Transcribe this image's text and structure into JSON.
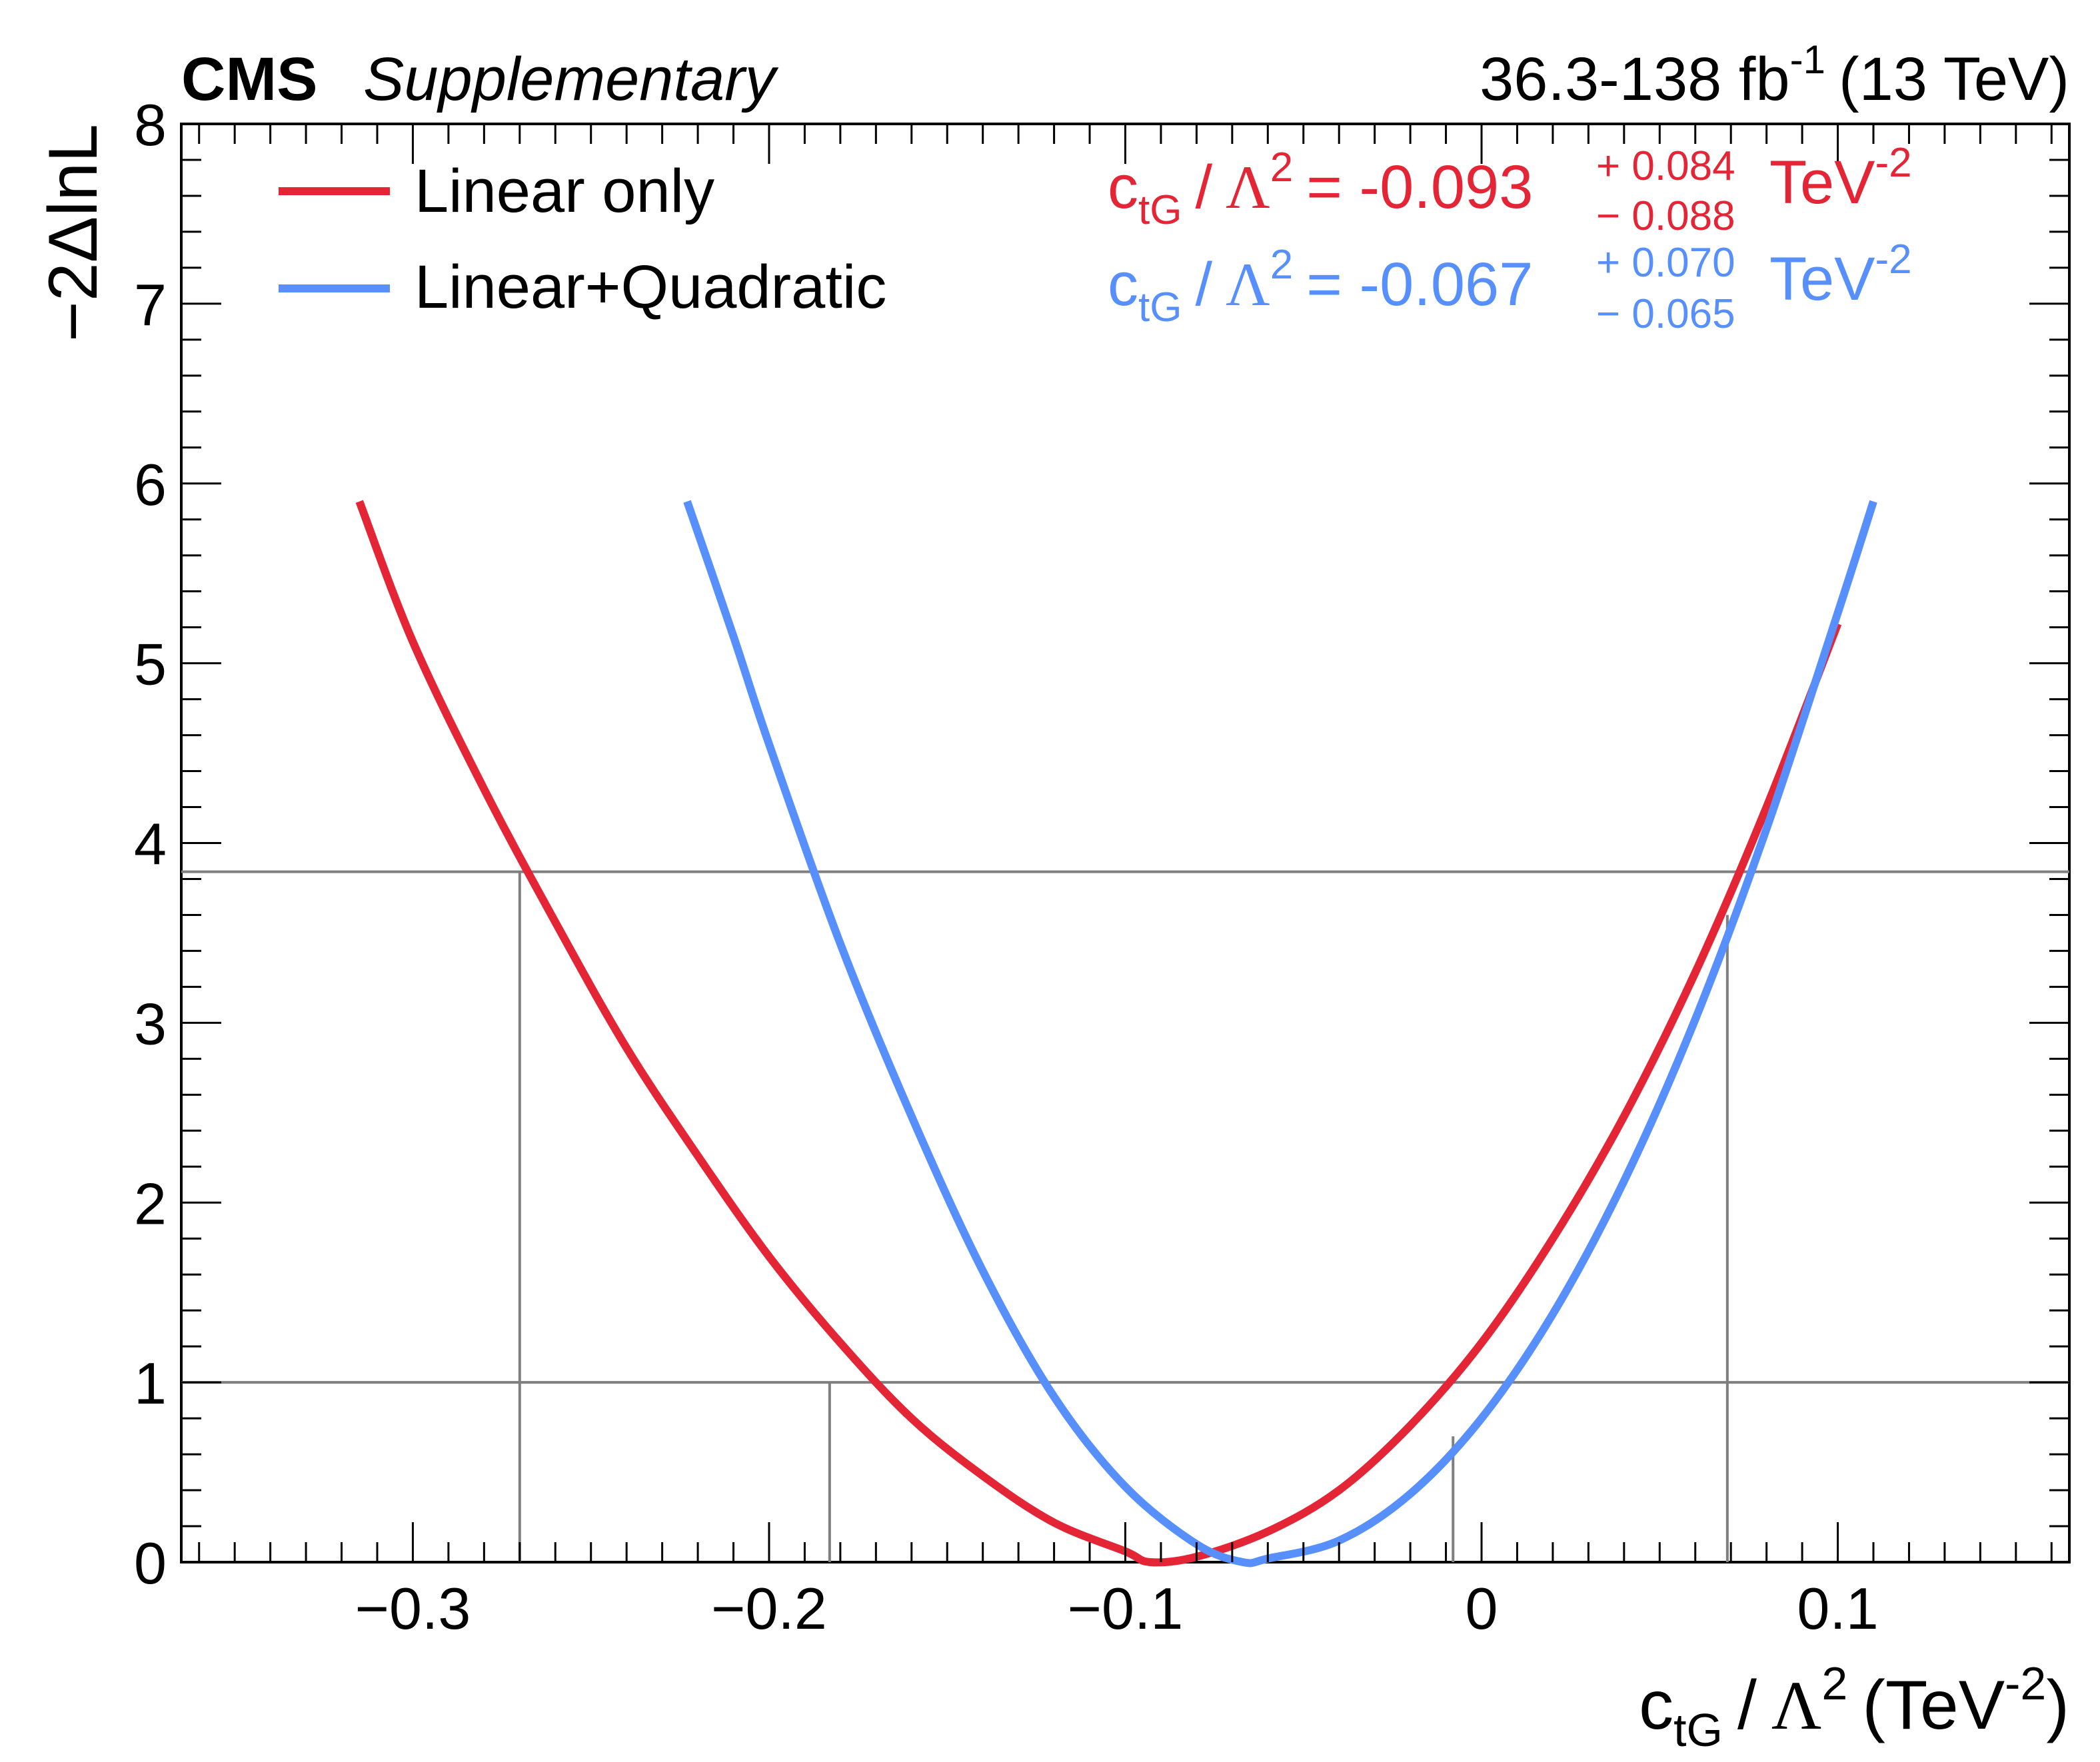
{
  "header": {
    "experiment": "CMS",
    "status": "Supplementary",
    "lumi_value": "36.3-138 fb",
    "lumi_exponent": "-1",
    "energy": "(13 TeV)"
  },
  "axes": {
    "xlabel": {
      "c": "c",
      "sub": "tG",
      "slash": "/",
      "lambda": "Λ",
      "sup": "2",
      "unit_open": "(TeV",
      "unit_exp": "-2",
      "unit_close": ")"
    },
    "ylabel": "−2ΔlnL"
  },
  "legend": {
    "items": [
      {
        "label": "Linear only",
        "color": "#e42536"
      },
      {
        "label": "Linear+Quadratic",
        "color": "#5790fc"
      }
    ]
  },
  "results": [
    {
      "c": "c",
      "sub": "tG",
      "slash": "/",
      "lambda": "Λ",
      "sup": "2",
      "eq": "= -0.093",
      "plus": "+ 0.084",
      "minus": "− 0.088",
      "unit": "TeV",
      "unit_exp": "-2",
      "color": "#e42536"
    },
    {
      "c": "c",
      "sub": "tG",
      "slash": "/",
      "lambda": "Λ",
      "sup": "2",
      "eq": "= -0.067",
      "plus": "+ 0.070",
      "minus": "− 0.065",
      "unit": "TeV",
      "unit_exp": "-2",
      "color": "#5790fc"
    }
  ],
  "chart_data": {
    "type": "line",
    "xlim": [
      -0.365,
      0.165
    ],
    "ylim": [
      0,
      8
    ],
    "x_ticks": [
      -0.3,
      -0.2,
      -0.1,
      0,
      0.1
    ],
    "x_tick_labels": [
      "−0.3",
      "−0.2",
      "−0.1",
      "0",
      "0.1"
    ],
    "y_ticks": [
      0,
      1,
      2,
      3,
      4,
      5,
      6,
      7,
      8
    ],
    "y_tick_labels": [
      "0",
      "1",
      "2",
      "3",
      "4",
      "5",
      "6",
      "7",
      "8"
    ],
    "series": [
      {
        "name": "Linear only",
        "color": "#e42536",
        "x": [
          -0.315,
          -0.3,
          -0.28,
          -0.26,
          -0.24,
          -0.22,
          -0.2,
          -0.18,
          -0.16,
          -0.14,
          -0.12,
          -0.1,
          -0.093,
          -0.08,
          -0.06,
          -0.04,
          -0.02,
          0.0,
          0.02,
          0.04,
          0.06,
          0.08,
          0.1
        ],
        "y": [
          5.9,
          5.12,
          4.3,
          3.56,
          2.86,
          2.26,
          1.7,
          1.22,
          0.8,
          0.48,
          0.22,
          0.06,
          0.0,
          0.03,
          0.17,
          0.4,
          0.76,
          1.22,
          1.8,
          2.48,
          3.28,
          4.2,
          5.22
        ]
      },
      {
        "name": "Linear+Quadratic",
        "color": "#5790fc",
        "x": [
          -0.223,
          -0.21,
          -0.2,
          -0.18,
          -0.16,
          -0.14,
          -0.12,
          -0.1,
          -0.08,
          -0.067,
          -0.06,
          -0.04,
          -0.02,
          0.0,
          0.02,
          0.04,
          0.06,
          0.08,
          0.1,
          0.11
        ],
        "y": [
          5.9,
          5.15,
          4.55,
          3.44,
          2.48,
          1.62,
          0.92,
          0.42,
          0.1,
          0.0,
          0.02,
          0.12,
          0.38,
          0.8,
          1.38,
          2.12,
          3.02,
          4.08,
          5.28,
          5.9
        ]
      }
    ],
    "reference_lines": {
      "horizontal": [
        1,
        3.84
      ]
    },
    "crossings": [
      {
        "x": -0.27,
        "y": 3.84
      },
      {
        "x": -0.183,
        "y": 1
      },
      {
        "x": -0.008,
        "y": 0.7
      },
      {
        "x": 0.069,
        "y": 3.6
      }
    ]
  }
}
